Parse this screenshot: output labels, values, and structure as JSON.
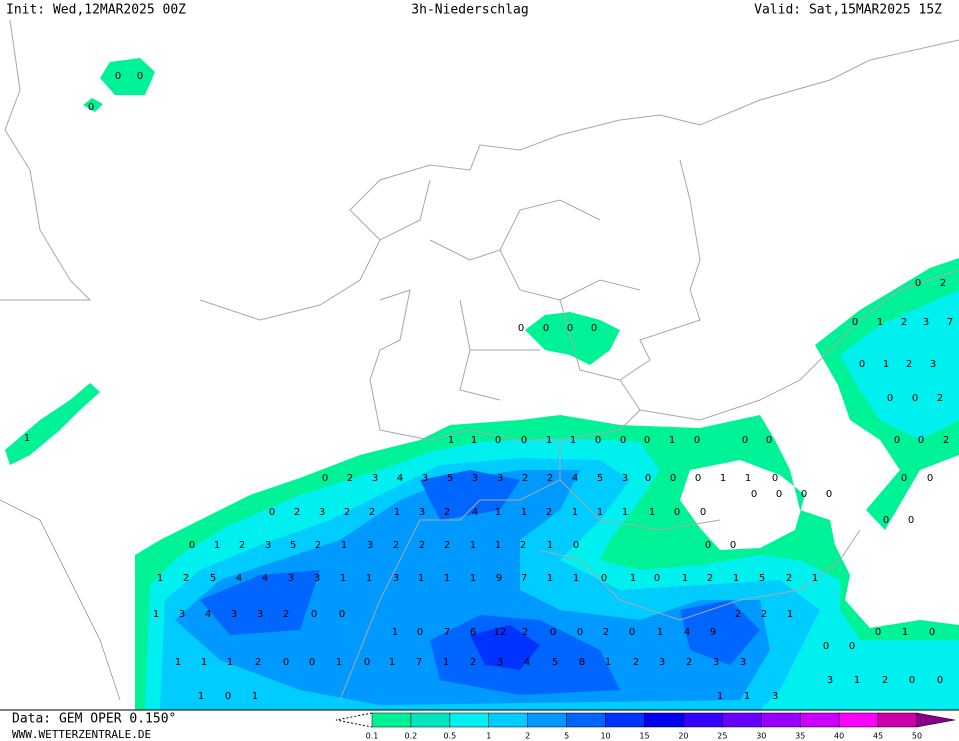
{
  "header": {
    "init": "Init: Wed,12MAR2025 00Z",
    "title": "3h-Niederschlag",
    "valid": "Valid: Sat,15MAR2025 15Z"
  },
  "footer": {
    "data_source": "Data: GEM OPER 0.150°",
    "website": "WWW.WETTERZENTRALE.DE"
  },
  "legend": {
    "levels": [
      0.1,
      0.2,
      0.5,
      1,
      2,
      5,
      10,
      15,
      20,
      25,
      30,
      35,
      40,
      45,
      50
    ],
    "colors": [
      "#00f296",
      "#00e6c0",
      "#00f0f0",
      "#00ccff",
      "#0099ff",
      "#0066ff",
      "#0033ff",
      "#0000ee",
      "#3300ff",
      "#6600ff",
      "#9900ff",
      "#cc00ff",
      "#ff00ff",
      "#cc00aa",
      "#880088"
    ]
  },
  "precip_labels": [
    [
      0,
      0
    ],
    [
      0
    ],
    [
      0,
      2
    ],
    [
      0,
      1,
      2,
      3,
      7
    ],
    [
      0,
      0,
      0,
      0
    ],
    [
      0,
      1,
      2,
      3
    ],
    [
      0,
      0,
      2
    ],
    [
      1
    ],
    [
      1,
      1,
      0,
      0,
      1,
      1,
      0,
      0,
      0,
      1,
      0,
      0,
      0,
      0,
      0,
      2
    ],
    [
      0,
      2,
      3,
      4,
      3,
      5,
      3,
      3,
      2,
      2,
      4,
      5,
      3,
      0,
      0,
      0,
      1,
      1,
      0,
      0,
      0
    ],
    [
      0,
      0,
      0,
      0
    ],
    [
      0,
      2,
      3,
      2,
      2,
      1,
      3,
      2,
      4,
      1,
      1,
      2,
      1,
      1,
      1,
      1,
      0,
      0
    ],
    [
      0,
      0
    ],
    [
      0,
      1,
      2,
      3,
      5,
      2,
      1,
      3,
      2,
      2,
      2,
      1,
      1,
      2,
      1,
      0,
      0,
      0
    ],
    [
      1,
      2,
      5,
      4,
      4,
      3,
      3,
      1,
      1,
      3,
      1,
      1,
      1,
      9,
      7,
      1,
      1,
      0,
      1,
      0,
      1,
      2,
      1,
      5,
      2,
      1
    ],
    [
      1,
      3,
      4,
      3,
      3,
      2,
      0,
      0,
      2,
      2,
      1
    ],
    [
      1,
      0,
      7,
      6,
      12,
      2,
      0,
      0,
      2,
      0,
      1,
      4,
      9,
      0,
      1,
      0
    ],
    [
      0,
      0
    ],
    [
      1,
      1,
      1,
      2,
      0,
      0,
      1,
      0,
      1,
      7,
      1,
      2,
      3,
      4,
      5,
      8,
      1,
      2,
      3,
      2,
      3,
      3
    ],
    [
      3,
      1,
      2,
      0,
      0
    ],
    [
      1,
      0,
      1,
      1,
      1,
      3
    ]
  ]
}
